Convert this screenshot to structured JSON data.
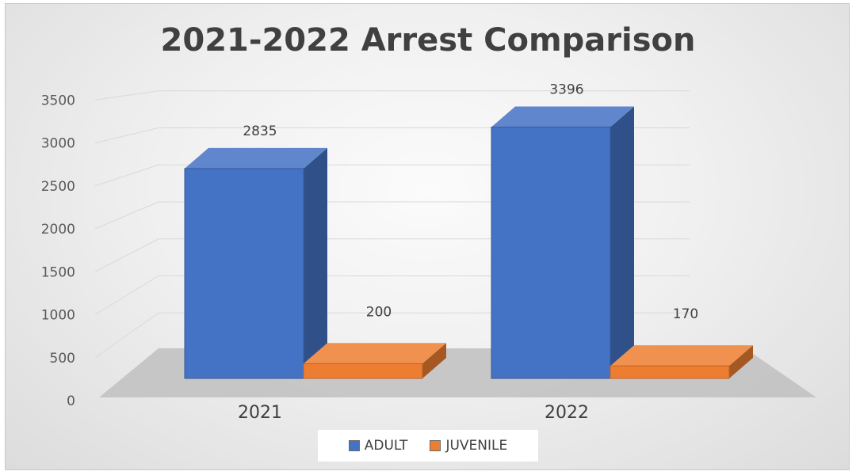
{
  "chart_data": {
    "type": "bar",
    "title": "2021-2022 Arrest Comparison",
    "categories": [
      "2021",
      "2022"
    ],
    "series": [
      {
        "name": "ADULT",
        "values": [
          2835,
          3396
        ],
        "color": "#4472c4"
      },
      {
        "name": "JUVENILE",
        "values": [
          200,
          170
        ],
        "color": "#ed7d31"
      }
    ],
    "ylim": [
      0,
      3500
    ],
    "yticks": [
      "0",
      "500",
      "1000",
      "1500",
      "2000",
      "2500",
      "3000",
      "3500"
    ],
    "grid": true,
    "legend_position": "bottom",
    "style": "3d-column"
  }
}
